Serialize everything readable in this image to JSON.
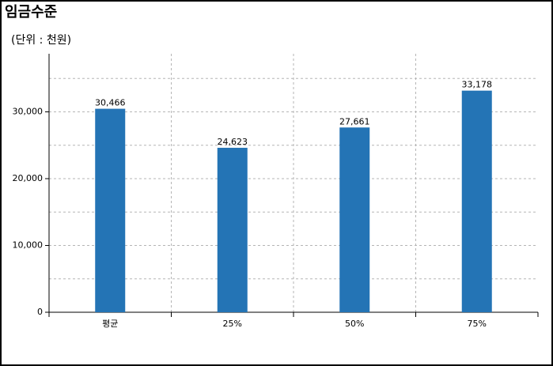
{
  "chart_data": {
    "type": "bar",
    "title": "임금수준",
    "subtitle": "(단위 : 천원)",
    "categories": [
      "평균",
      "25%",
      "50%",
      "75%"
    ],
    "values": [
      30466,
      24623,
      27661,
      33178
    ],
    "value_labels": [
      "30,466",
      "24,623",
      "27,661",
      "33,178"
    ],
    "color": "#2474b5",
    "ylim": [
      0,
      38700
    ],
    "yticks": [
      0,
      {
        "value": 10000,
        "label": "10,000"
      },
      {
        "value": 20000,
        "label": "20,000"
      },
      {
        "value": 30000,
        "label": "30,000"
      }
    ],
    "minor_grid": [
      5000,
      15000,
      25000,
      35000
    ],
    "grid": true
  }
}
